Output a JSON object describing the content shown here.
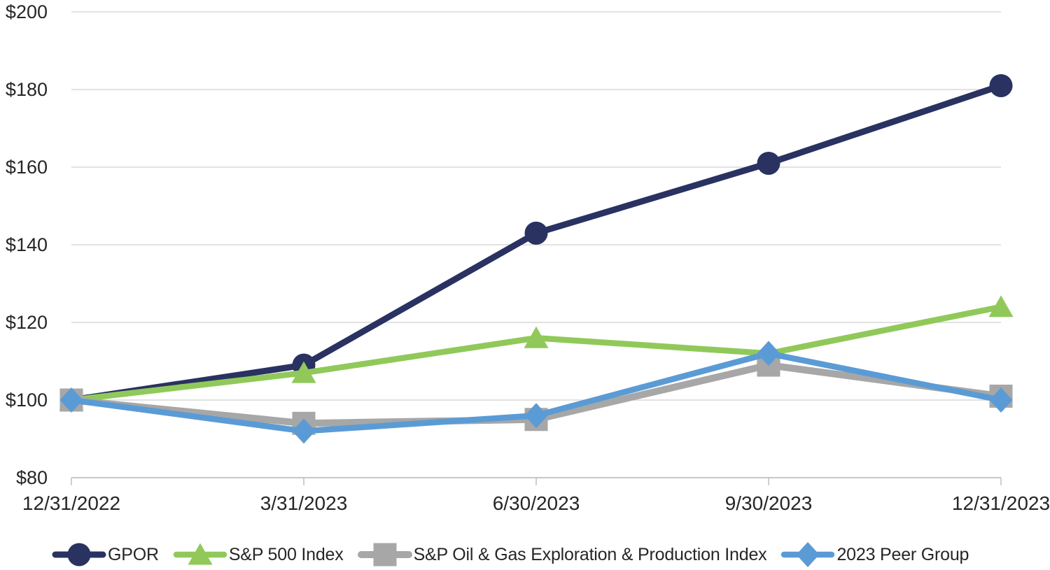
{
  "chart_data": {
    "type": "line",
    "title": "",
    "x_axis_label": "",
    "y_axis_label": "",
    "categories": [
      "12/31/2022",
      "3/31/2023",
      "6/30/2023",
      "9/30/2023",
      "12/31/2023"
    ],
    "y_axis": {
      "min": 80,
      "max": 200,
      "step": 20,
      "tick_labels": [
        "$80",
        "$100",
        "$120",
        "$140",
        "$160",
        "$180",
        "$200"
      ]
    },
    "series": [
      {
        "name": "GPOR",
        "marker": "circle",
        "color": "#293261",
        "line_width": 9,
        "values": [
          100,
          109,
          143,
          161,
          181
        ]
      },
      {
        "name": "S&P 500 Index",
        "marker": "triangle",
        "color": "#90C95A",
        "line_width": 8.5,
        "values": [
          100,
          107,
          116,
          112,
          124
        ]
      },
      {
        "name": "S&P Oil & Gas Exploration & Production Index",
        "marker": "square",
        "color": "#A7A7A7",
        "line_width": 10,
        "values": [
          100,
          94,
          95,
          109,
          101
        ]
      },
      {
        "name": "2023 Peer Group",
        "marker": "diamond",
        "color": "#5B9BD5",
        "line_width": 8.5,
        "values": [
          100,
          92,
          96,
          112,
          100
        ]
      }
    ],
    "legend_position": "bottom",
    "grid": "horizontal",
    "gridline_color": "#D9D9D9",
    "axis_line_color": "#BFBFBF",
    "text_color": "#262626"
  }
}
